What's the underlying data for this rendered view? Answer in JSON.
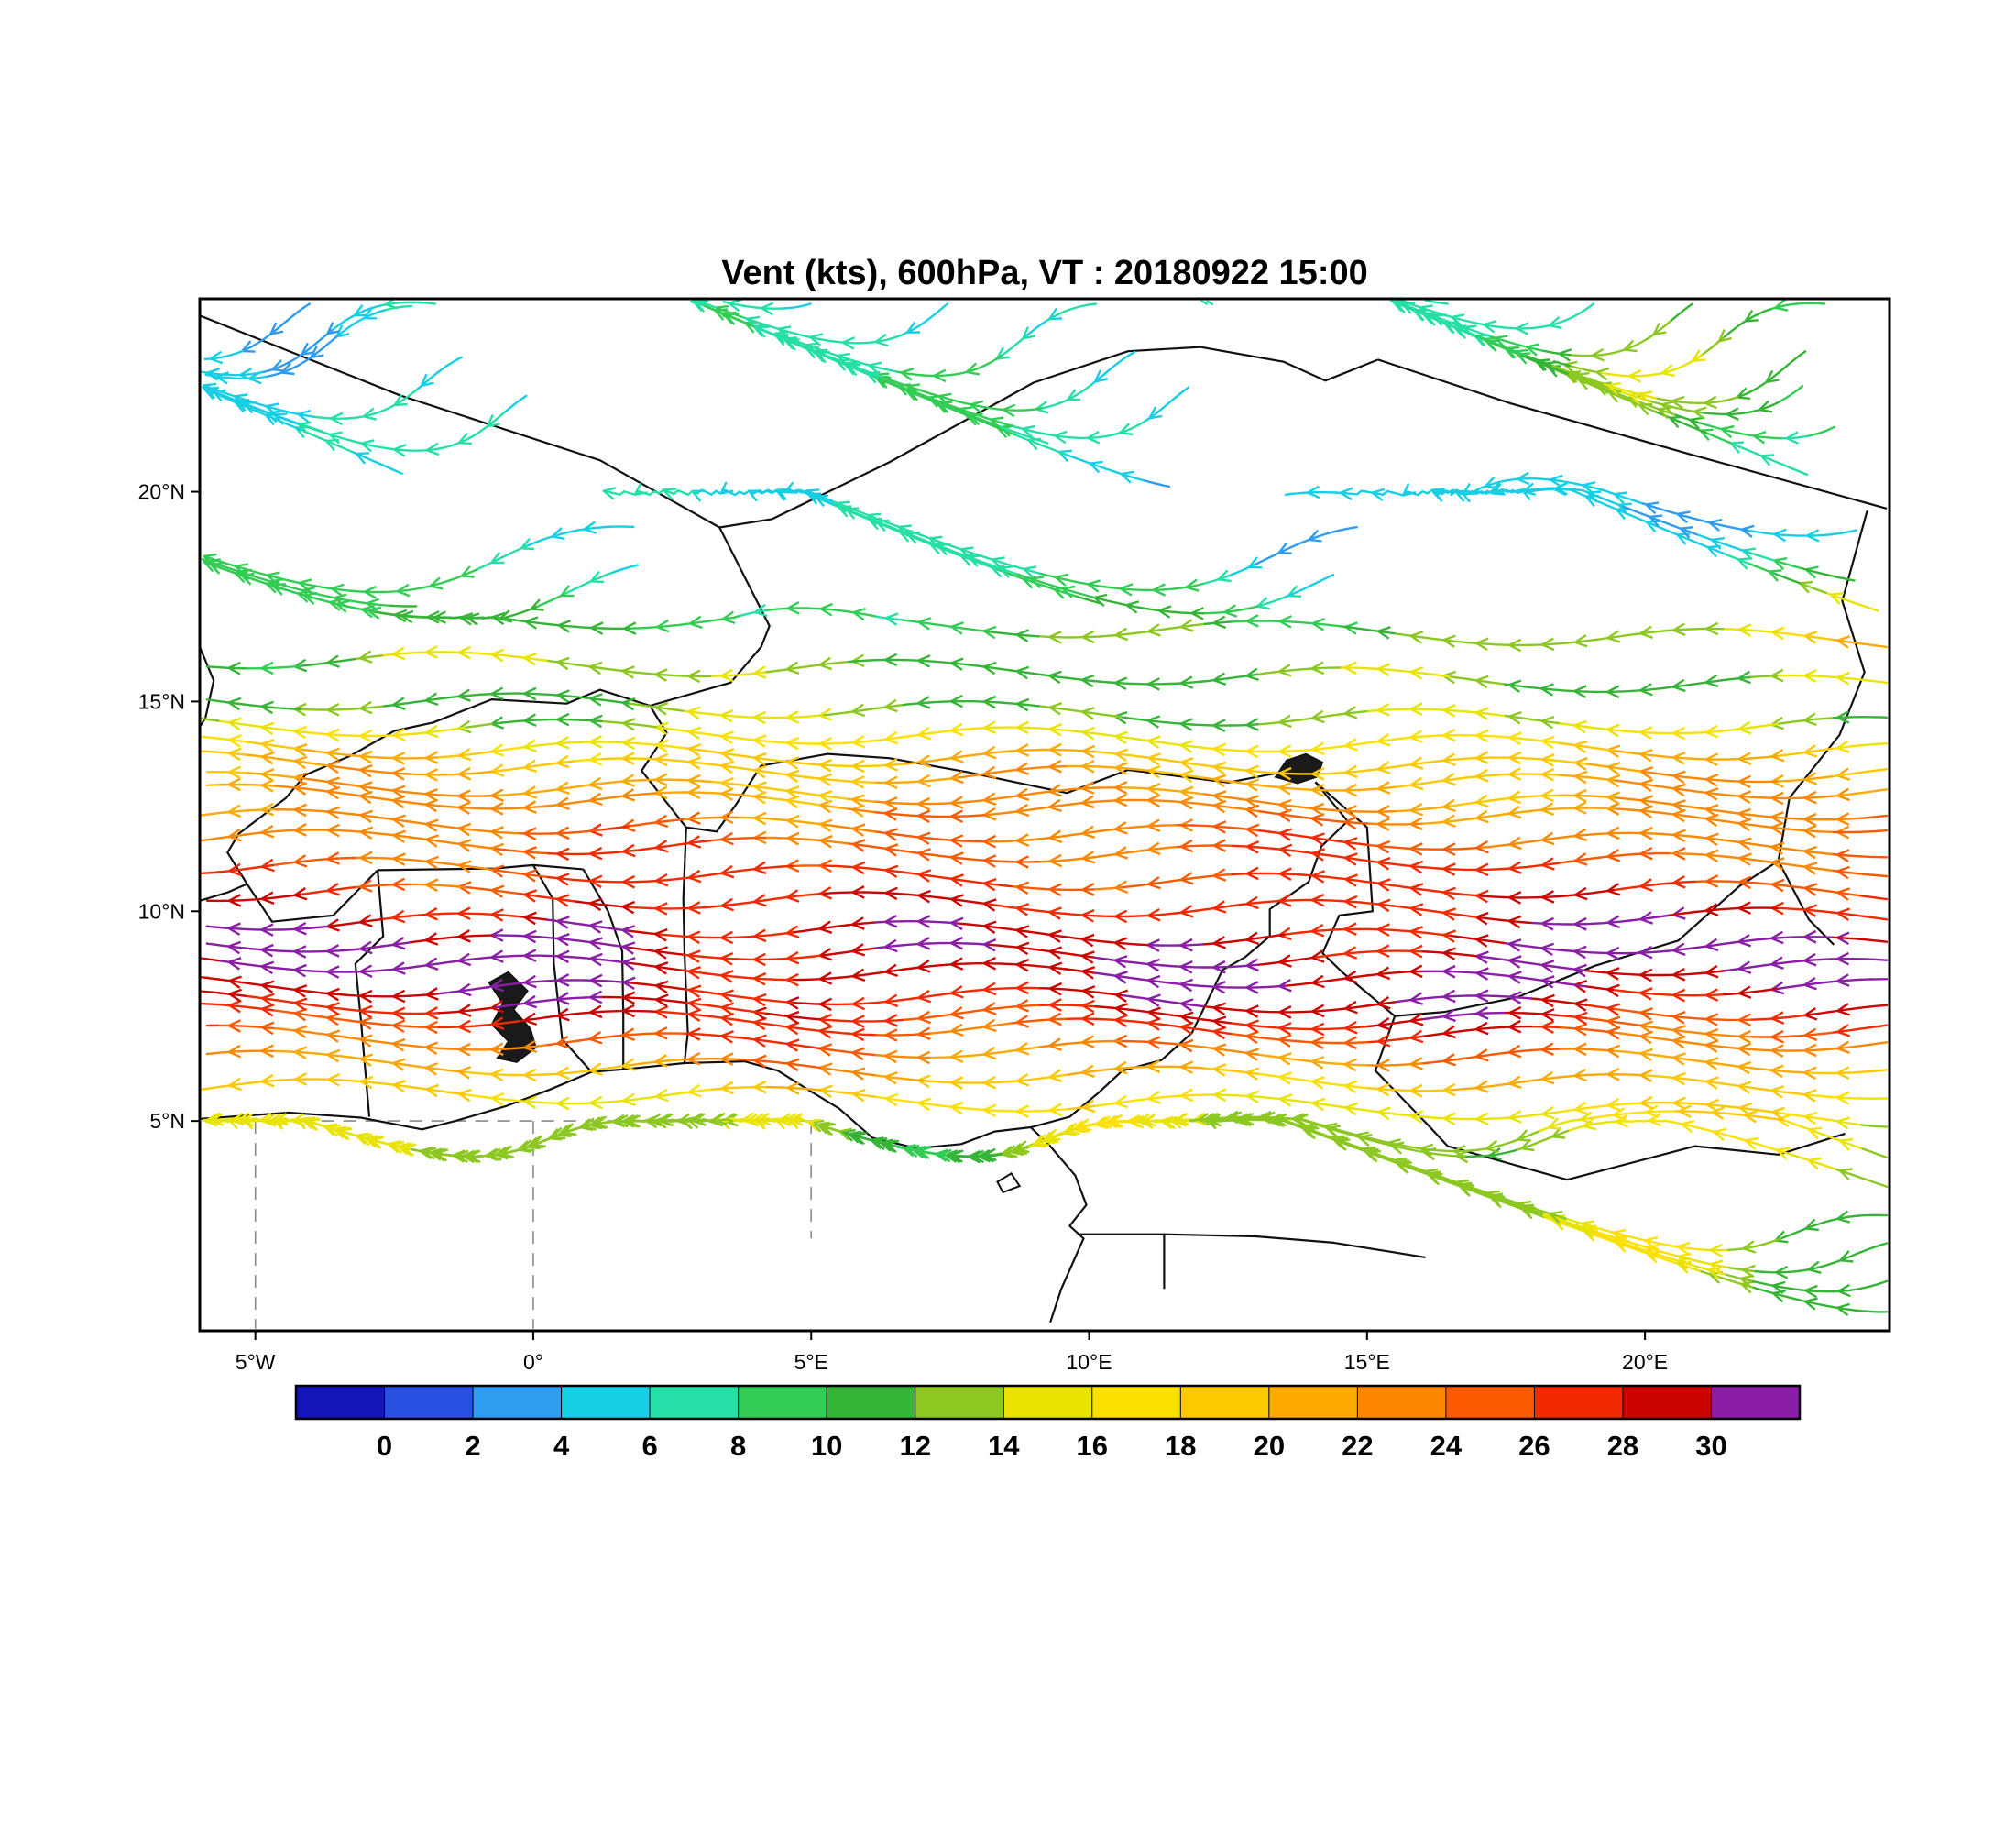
{
  "title": "Vent (kts), 600hPa, VT : 20180922  15:00",
  "chart_data": {
    "type": "streamline-map",
    "title": "Vent (kts), 600hPa, VT : 20180922  15:00",
    "variable": "Vent",
    "units": "kts",
    "level": "600hPa",
    "valid_time": "20180922 15:00",
    "lon_range": [
      -6,
      24.4
    ],
    "lat_range": [
      0,
      24.6
    ],
    "lat_ticks": [
      {
        "label": "5°N",
        "value": 5
      },
      {
        "label": "10°N",
        "value": 10
      },
      {
        "label": "15°N",
        "value": 15
      },
      {
        "label": "20°N",
        "value": 20
      }
    ],
    "lon_ticks": [
      {
        "label": "5°W",
        "value": -5
      },
      {
        "label": "0°",
        "value": 0
      },
      {
        "label": "5°E",
        "value": 5
      },
      {
        "label": "10°E",
        "value": 10
      },
      {
        "label": "15°E",
        "value": 15
      },
      {
        "label": "20°E",
        "value": 20
      }
    ],
    "colorbar": {
      "tick_values": [
        0,
        2,
        4,
        6,
        8,
        10,
        12,
        14,
        16,
        18,
        20,
        22,
        24,
        26,
        28,
        30
      ],
      "colors": [
        "#1414b8",
        "#2a50e2",
        "#2f9cf0",
        "#17cfe4",
        "#26dfa6",
        "#33cc55",
        "#36b437",
        "#8cc821",
        "#e8e400",
        "#fce000",
        "#fcc800",
        "#fcaa00",
        "#fc8800",
        "#fc5a00",
        "#f32a00",
        "#cc0400",
        "#8a1ea6"
      ]
    },
    "speed_profile_by_lat": [
      [
        0,
        9
      ],
      [
        0.8,
        10
      ],
      [
        1.8,
        11
      ],
      [
        2.8,
        9
      ],
      [
        3.8,
        10
      ],
      [
        4.7,
        13
      ],
      [
        5.3,
        16
      ],
      [
        5.9,
        19
      ],
      [
        6.6,
        23
      ],
      [
        7.4,
        27
      ],
      [
        8.2,
        29
      ],
      [
        9.2,
        29
      ],
      [
        10.2,
        27
      ],
      [
        11.2,
        25.5
      ],
      [
        12.2,
        23
      ],
      [
        13.0,
        21
      ],
      [
        13.8,
        19
      ],
      [
        14.6,
        13
      ],
      [
        15.4,
        11
      ],
      [
        16.2,
        14
      ],
      [
        17.0,
        9
      ],
      [
        18.0,
        8
      ],
      [
        19.5,
        5
      ],
      [
        21.0,
        6
      ],
      [
        23.0,
        7
      ],
      [
        24.6,
        6
      ]
    ],
    "speed_anomalies": [
      {
        "lon": 0.8,
        "lat": 9.3,
        "amp": 4,
        "sl": 1.6,
        "sf": 0.9
      },
      {
        "lon": 6.6,
        "lat": 12.2,
        "amp": 3.5,
        "sl": 1.2,
        "sf": 0.7
      },
      {
        "lon": 16.8,
        "lat": 8.2,
        "amp": 4,
        "sl": 2.2,
        "sf": 0.9
      },
      {
        "lon": 21.6,
        "lat": 9.6,
        "amp": 3.5,
        "sl": 1.5,
        "sf": 0.9
      },
      {
        "lon": -3.8,
        "lat": 8.5,
        "amp": 3,
        "sl": 1.4,
        "sf": 0.8
      },
      {
        "lon": 12.5,
        "lat": 19.5,
        "amp": -4,
        "sl": 2.5,
        "sf": 1.4
      },
      {
        "lon": -4.6,
        "lat": 22.8,
        "amp": -5,
        "sl": 1.5,
        "sf": 1.4
      },
      {
        "lon": 21.0,
        "lat": 23.2,
        "amp": 8,
        "sl": 3.0,
        "sf": 1.5
      },
      {
        "lon": 19.0,
        "lat": 17.3,
        "amp": 5,
        "sl": 3.0,
        "sf": 0.9
      },
      {
        "lon": 23.8,
        "lat": 16.5,
        "amp": 6,
        "sl": 1.5,
        "sf": 1.5
      },
      {
        "lon": 4.0,
        "lat": 2.0,
        "amp": 5,
        "sl": 2.0,
        "sf": 1.2
      },
      {
        "lon": 20.0,
        "lat": 3.0,
        "amp": 7,
        "sl": 4.0,
        "sf": 1.6
      }
    ],
    "borders": [
      {
        "name": "mali-algeria",
        "pts": [
          [
            -6,
            24.2
          ],
          [
            -2.4,
            22.3
          ],
          [
            1.2,
            20.75
          ],
          [
            3.35,
            19.15
          ]
        ]
      },
      {
        "name": "niger-north",
        "pts": [
          [
            3.35,
            19.15
          ],
          [
            4.3,
            19.35
          ],
          [
            6.4,
            20.7
          ],
          [
            9.0,
            22.6
          ],
          [
            10.7,
            23.35
          ],
          [
            12.0,
            23.45
          ],
          [
            13.5,
            23.1
          ],
          [
            14.25,
            22.65
          ],
          [
            15.2,
            23.15
          ]
        ]
      },
      {
        "name": "libya-chad",
        "pts": [
          [
            15.2,
            23.15
          ],
          [
            17.6,
            22.1
          ],
          [
            20.8,
            20.9
          ],
          [
            24.35,
            19.6
          ]
        ]
      },
      {
        "name": "chad-sudan",
        "pts": [
          [
            24.0,
            19.55
          ],
          [
            23.55,
            17.4
          ],
          [
            23.95,
            15.7
          ],
          [
            23.5,
            14.2
          ],
          [
            22.6,
            12.7
          ],
          [
            22.4,
            11.2
          ],
          [
            22.95,
            9.8
          ],
          [
            23.4,
            9.2
          ]
        ]
      },
      {
        "name": "mali-niger-burkina-west",
        "pts": [
          [
            3.35,
            19.15
          ],
          [
            4.25,
            16.8
          ],
          [
            4.1,
            16.3
          ],
          [
            3.55,
            15.45
          ],
          [
            2.1,
            14.9
          ],
          [
            1.2,
            15.28
          ],
          [
            0.6,
            14.95
          ],
          [
            -0.75,
            15.05
          ],
          [
            -1.8,
            14.5
          ],
          [
            -2.5,
            14.3
          ],
          [
            -3.3,
            13.7
          ],
          [
            -4.1,
            13.25
          ],
          [
            -4.45,
            12.7
          ],
          [
            -5.3,
            11.85
          ],
          [
            -5.5,
            11.4
          ],
          [
            -5.15,
            10.65
          ],
          [
            -5.5,
            10.45
          ],
          [
            -6,
            10.25
          ]
        ]
      },
      {
        "name": "burkina-benin-niger",
        "pts": [
          [
            2.1,
            14.9
          ],
          [
            2.4,
            14.25
          ],
          [
            1.95,
            13.35
          ],
          [
            2.75,
            12.0
          ],
          [
            3.3,
            11.9
          ],
          [
            3.65,
            12.55
          ],
          [
            4.1,
            13.47
          ]
        ]
      },
      {
        "name": "niger-nigeria",
        "pts": [
          [
            4.1,
            13.47
          ],
          [
            5.3,
            13.75
          ],
          [
            6.4,
            13.65
          ],
          [
            7.8,
            13.32
          ],
          [
            9.6,
            12.82
          ],
          [
            10.7,
            13.37
          ],
          [
            12.5,
            13.07
          ],
          [
            13.6,
            13.35
          ]
        ]
      },
      {
        "name": "nigeria-cameroon",
        "pts": [
          [
            14.07,
            13.08
          ],
          [
            14.65,
            12.15
          ],
          [
            14.18,
            11.55
          ],
          [
            13.95,
            10.7
          ],
          [
            13.25,
            10.05
          ],
          [
            13.25,
            9.4
          ],
          [
            12.8,
            8.9
          ],
          [
            12.4,
            8.6
          ],
          [
            11.85,
            7.1
          ],
          [
            11.3,
            6.45
          ],
          [
            10.6,
            6.2
          ],
          [
            10.15,
            5.65
          ],
          [
            9.65,
            5.1
          ],
          [
            8.95,
            4.85
          ]
        ]
      },
      {
        "name": "chad-cameroon-car",
        "pts": [
          [
            14.07,
            13.08
          ],
          [
            15.0,
            12.0
          ],
          [
            15.1,
            10.0
          ],
          [
            14.5,
            9.9
          ],
          [
            14.2,
            9.0
          ],
          [
            14.55,
            8.55
          ],
          [
            15.5,
            7.5
          ],
          [
            16.4,
            7.6
          ],
          [
            17.7,
            7.95
          ],
          [
            19.1,
            8.7
          ],
          [
            20.6,
            9.3
          ],
          [
            21.7,
            10.6
          ],
          [
            22.4,
            11.2
          ]
        ]
      },
      {
        "name": "cameroon-car",
        "pts": [
          [
            15.5,
            7.5
          ],
          [
            15.15,
            6.2
          ],
          [
            16.1,
            4.9
          ],
          [
            16.45,
            4.4
          ]
        ]
      },
      {
        "name": "car-drc",
        "pts": [
          [
            16.45,
            4.4
          ],
          [
            18.6,
            3.6
          ],
          [
            20.9,
            4.4
          ],
          [
            22.4,
            4.2
          ],
          [
            23.6,
            4.7
          ]
        ]
      },
      {
        "name": "benin-nigeria",
        "pts": [
          [
            2.75,
            12.0
          ],
          [
            2.7,
            10.3
          ],
          [
            2.72,
            9.05
          ],
          [
            2.78,
            7.1
          ],
          [
            2.72,
            6.38
          ]
        ]
      },
      {
        "name": "togo-benin",
        "pts": [
          [
            0.9,
            11.0
          ],
          [
            1.35,
            9.99
          ],
          [
            1.6,
            9.05
          ],
          [
            1.62,
            7.5
          ],
          [
            1.62,
            6.23
          ]
        ]
      },
      {
        "name": "ghana-togo",
        "pts": [
          [
            0.0,
            11.1
          ],
          [
            0.35,
            10.3
          ],
          [
            0.37,
            8.75
          ],
          [
            0.52,
            6.95
          ],
          [
            1.05,
            6.17
          ]
        ]
      },
      {
        "name": "ghana-burkina",
        "pts": [
          [
            -2.8,
            10.98
          ],
          [
            -0.7,
            11.02
          ],
          [
            0.0,
            11.1
          ],
          [
            0.9,
            11.0
          ]
        ]
      },
      {
        "name": "ghana-cotedivoire",
        "pts": [
          [
            -2.8,
            10.98
          ],
          [
            -2.7,
            9.4
          ],
          [
            -3.2,
            8.75
          ],
          [
            -3.1,
            7.4
          ],
          [
            -2.95,
            5.1
          ]
        ]
      },
      {
        "name": "burkina-cotedivoire",
        "pts": [
          [
            -5.15,
            10.65
          ],
          [
            -4.7,
            9.75
          ],
          [
            -3.6,
            9.9
          ],
          [
            -2.8,
            10.98
          ]
        ]
      },
      {
        "name": "mauritania-mali",
        "pts": [
          [
            -6,
            16.3
          ],
          [
            -5.75,
            15.5
          ],
          [
            -5.9,
            14.6
          ],
          [
            -6,
            14.4
          ]
        ]
      },
      {
        "name": "eq-guinea-gabon",
        "pts": [
          [
            9.8,
            2.3
          ],
          [
            11.35,
            2.3
          ],
          [
            11.35,
            1.0
          ]
        ]
      },
      {
        "name": "cameroon-gabon-congo",
        "pts": [
          [
            11.35,
            2.3
          ],
          [
            13.0,
            2.25
          ],
          [
            14.4,
            2.1
          ],
          [
            16.05,
            1.75
          ]
        ]
      }
    ],
    "coastline": [
      [
        -6,
        5.05
      ],
      [
        -4.4,
        5.2
      ],
      [
        -3.1,
        5.08
      ],
      [
        -2.0,
        4.8
      ],
      [
        -1.4,
        5.0
      ],
      [
        -0.5,
        5.35
      ],
      [
        0.3,
        5.75
      ],
      [
        1.05,
        6.17
      ],
      [
        1.62,
        6.23
      ],
      [
        2.72,
        6.38
      ],
      [
        3.8,
        6.42
      ],
      [
        4.4,
        6.2
      ],
      [
        5.0,
        5.7
      ],
      [
        5.5,
        5.3
      ],
      [
        6.1,
        4.6
      ],
      [
        6.9,
        4.35
      ],
      [
        7.7,
        4.45
      ],
      [
        8.3,
        4.75
      ],
      [
        8.95,
        4.85
      ],
      [
        9.3,
        4.4
      ],
      [
        9.75,
        3.7
      ],
      [
        9.95,
        3.0
      ],
      [
        9.65,
        2.5
      ],
      [
        9.9,
        2.2
      ],
      [
        9.5,
        1.0
      ],
      [
        9.3,
        0.2
      ]
    ],
    "islands": [
      [
        [
          8.45,
          3.3
        ],
        [
          8.75,
          3.45
        ],
        [
          8.6,
          3.75
        ],
        [
          8.35,
          3.55
        ],
        [
          8.45,
          3.3
        ]
      ]
    ],
    "lakes": [
      {
        "name": "lake-volta",
        "pts": [
          [
            -0.3,
            6.4
          ],
          [
            0.05,
            6.75
          ],
          [
            -0.05,
            7.2
          ],
          [
            -0.35,
            7.65
          ],
          [
            -0.1,
            8.1
          ],
          [
            -0.45,
            8.55
          ],
          [
            -0.8,
            8.3
          ],
          [
            -0.55,
            7.8
          ],
          [
            -0.75,
            7.3
          ],
          [
            -0.45,
            6.9
          ],
          [
            -0.65,
            6.5
          ],
          [
            -0.3,
            6.4
          ]
        ]
      },
      {
        "name": "lake-chad",
        "pts": [
          [
            13.35,
            13.2
          ],
          [
            13.75,
            13.05
          ],
          [
            14.1,
            13.2
          ],
          [
            14.2,
            13.55
          ],
          [
            13.9,
            13.75
          ],
          [
            13.55,
            13.6
          ],
          [
            13.35,
            13.2
          ]
        ]
      }
    ],
    "dashed_lines": [
      [
        [
          -5,
          5
        ],
        [
          5,
          5
        ]
      ],
      [
        [
          0,
          5
        ],
        [
          0,
          0.05
        ]
      ],
      [
        [
          5,
          5
        ],
        [
          5,
          2.2
        ]
      ],
      [
        [
          -5,
          5
        ],
        [
          -5,
          0.05
        ]
      ]
    ]
  }
}
